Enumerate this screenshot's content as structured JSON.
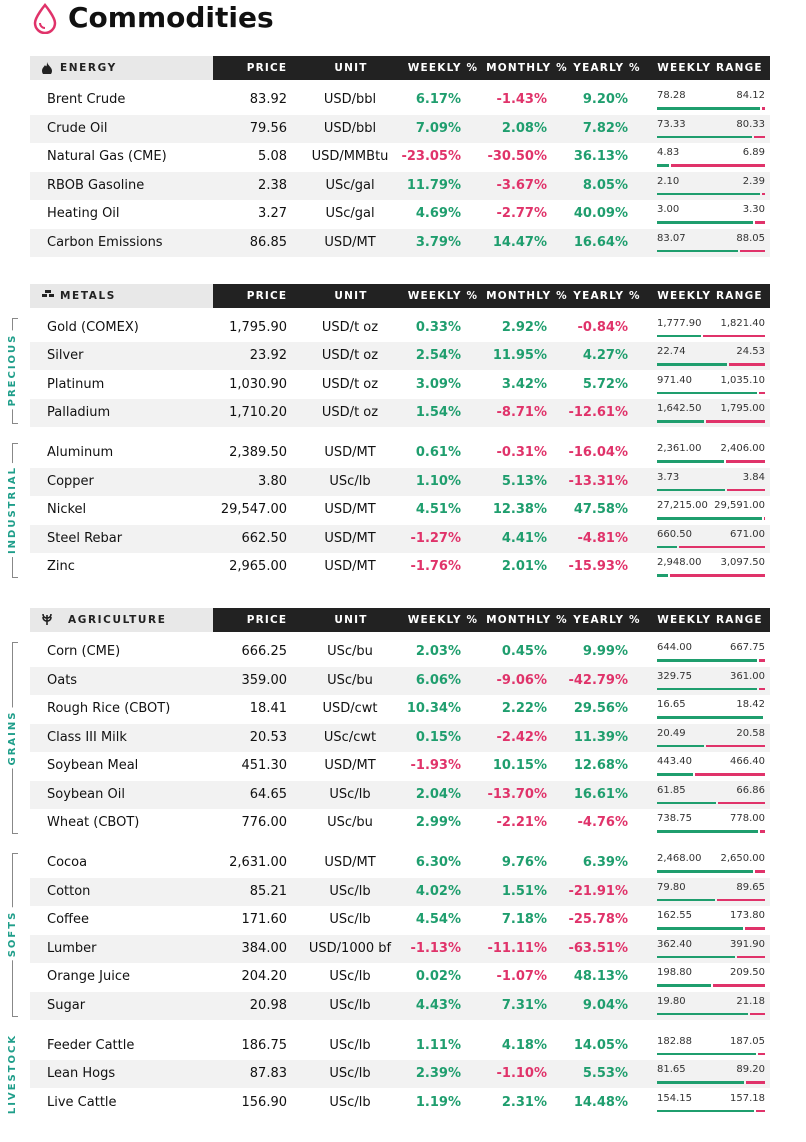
{
  "title": "Commodities",
  "sections": [
    {
      "name": "ENERGY",
      "headers": [
        "PRICE",
        "UNIT",
        "WEEKLY %",
        "MONTHLY %",
        "YEARLY %",
        "WEEKLY RANGE"
      ],
      "groups": [
        {
          "rows": [
            [
              "Brent Crude",
              "83.92",
              "USD/bbl",
              "6.17%",
              "-1.43%",
              "9.20%",
              "78.28",
              "84.12"
            ],
            [
              "Crude Oil",
              "79.56",
              "USD/bbl",
              "7.09%",
              "2.08%",
              "7.82%",
              "73.33",
              "80.33"
            ],
            [
              "Natural Gas (CME)",
              "5.08",
              "USD/MMBtu",
              "-23.05%",
              "-30.50%",
              "36.13%",
              "4.83",
              "6.89"
            ],
            [
              "RBOB Gasoline",
              "2.38",
              "USc/gal",
              "11.79%",
              "-3.67%",
              "8.05%",
              "2.10",
              "2.39"
            ],
            [
              "Heating Oil",
              "3.27",
              "USc/gal",
              "4.69%",
              "-2.77%",
              "40.09%",
              "3.00",
              "3.30"
            ],
            [
              "Carbon Emissions",
              "86.85",
              "USD/MT",
              "3.79%",
              "14.47%",
              "16.64%",
              "83.07",
              "88.05"
            ]
          ]
        }
      ]
    },
    {
      "name": "METALS",
      "headers": [
        "PRICE",
        "UNIT",
        "WEEKLY %",
        "MONTHLY %",
        "YEARLY %",
        "WEEKLY RANGE"
      ],
      "groups": [
        {
          "label": "PRECIOUS",
          "rows": [
            [
              "Gold (COMEX)",
              "1,795.90",
              "USD/t oz",
              "0.33%",
              "2.92%",
              "-0.84%",
              "1,777.90",
              "1,821.40"
            ],
            [
              "Silver",
              "23.92",
              "USD/t oz",
              "2.54%",
              "11.95%",
              "4.27%",
              "22.74",
              "24.53"
            ],
            [
              "Platinum",
              "1,030.90",
              "USD/t oz",
              "3.09%",
              "3.42%",
              "5.72%",
              "971.40",
              "1,035.10"
            ],
            [
              "Palladium",
              "1,710.20",
              "USD/t oz",
              "1.54%",
              "-8.71%",
              "-12.61%",
              "1,642.50",
              "1,795.00"
            ]
          ]
        },
        {
          "label": "INDUSTRIAL",
          "rows": [
            [
              "Aluminum",
              "2,389.50",
              "USD/MT",
              "0.61%",
              "-0.31%",
              "-16.04%",
              "2,361.00",
              "2,406.00"
            ],
            [
              "Copper",
              "3.80",
              "USc/lb",
              "1.10%",
              "5.13%",
              "-13.31%",
              "3.73",
              "3.84"
            ],
            [
              "Nickel",
              "29,547.00",
              "USD/MT",
              "4.51%",
              "12.38%",
              "47.58%",
              "27,215.00",
              "29,591.00"
            ],
            [
              "Steel Rebar",
              "662.50",
              "USD/MT",
              "-1.27%",
              "4.41%",
              "-4.81%",
              "660.50",
              "671.00"
            ],
            [
              "Zinc",
              "2,965.00",
              "USD/MT",
              "-1.76%",
              "2.01%",
              "-15.93%",
              "2,948.00",
              "3,097.50"
            ]
          ]
        }
      ]
    },
    {
      "name": "AGRICULTURE",
      "headers": [
        "PRICE",
        "UNIT",
        "WEEKLY %",
        "MONTHLY %",
        "YEARLY %",
        "WEEKLY RANGE"
      ],
      "groups": [
        {
          "label": "GRAINS",
          "rows": [
            [
              "Corn (CME)",
              "666.25",
              "USc/bu",
              "2.03%",
              "0.45%",
              "9.99%",
              "644.00",
              "667.75"
            ],
            [
              "Oats",
              "359.00",
              "USc/bu",
              "6.06%",
              "-9.06%",
              "-42.79%",
              "329.75",
              "361.00"
            ],
            [
              "Rough Rice (CBOT)",
              "18.41",
              "USD/cwt",
              "10.34%",
              "2.22%",
              "29.56%",
              "16.65",
              "18.42"
            ],
            [
              "Class III Milk",
              "20.53",
              "USc/cwt",
              "0.15%",
              "-2.42%",
              "11.39%",
              "20.49",
              "20.58"
            ],
            [
              "Soybean Meal",
              "451.30",
              "USD/MT",
              "-1.93%",
              "10.15%",
              "12.68%",
              "443.40",
              "466.40"
            ],
            [
              "Soybean Oil",
              "64.65",
              "USc/lb",
              "2.04%",
              "-13.70%",
              "16.61%",
              "61.85",
              "66.86"
            ],
            [
              "Wheat (CBOT)",
              "776.00",
              "USc/bu",
              "2.99%",
              "-2.21%",
              "-4.76%",
              "738.75",
              "778.00"
            ]
          ]
        },
        {
          "label": "SOFTS",
          "rows": [
            [
              "Cocoa",
              "2,631.00",
              "USD/MT",
              "6.30%",
              "9.76%",
              "6.39%",
              "2,468.00",
              "2,650.00"
            ],
            [
              "Cotton",
              "85.21",
              "USc/lb",
              "4.02%",
              "1.51%",
              "-21.91%",
              "79.80",
              "89.65"
            ],
            [
              "Coffee",
              "171.60",
              "USc/lb",
              "4.54%",
              "7.18%",
              "-25.78%",
              "162.55",
              "173.80"
            ],
            [
              "Lumber",
              "384.00",
              "USD/1000 bf",
              "-1.13%",
              "-11.11%",
              "-63.51%",
              "362.40",
              "391.90"
            ],
            [
              "Orange Juice",
              "204.20",
              "USc/lb",
              "0.02%",
              "-1.07%",
              "48.13%",
              "198.80",
              "209.50"
            ],
            [
              "Sugar",
              "20.98",
              "USc/lb",
              "4.43%",
              "7.31%",
              "9.04%",
              "19.80",
              "21.18"
            ]
          ]
        },
        {
          "label": "LIVESTOCK",
          "rows": [
            [
              "Feeder Cattle",
              "186.75",
              "USc/lb",
              "1.11%",
              "4.18%",
              "14.05%",
              "182.88",
              "187.05"
            ],
            [
              "Lean Hogs",
              "87.83",
              "USc/lb",
              "2.39%",
              "-1.10%",
              "5.53%",
              "81.65",
              "89.20"
            ],
            [
              "Live Cattle",
              "156.90",
              "USc/lb",
              "1.19%",
              "2.31%",
              "14.48%",
              "154.15",
              "157.18"
            ]
          ]
        }
      ]
    }
  ]
}
